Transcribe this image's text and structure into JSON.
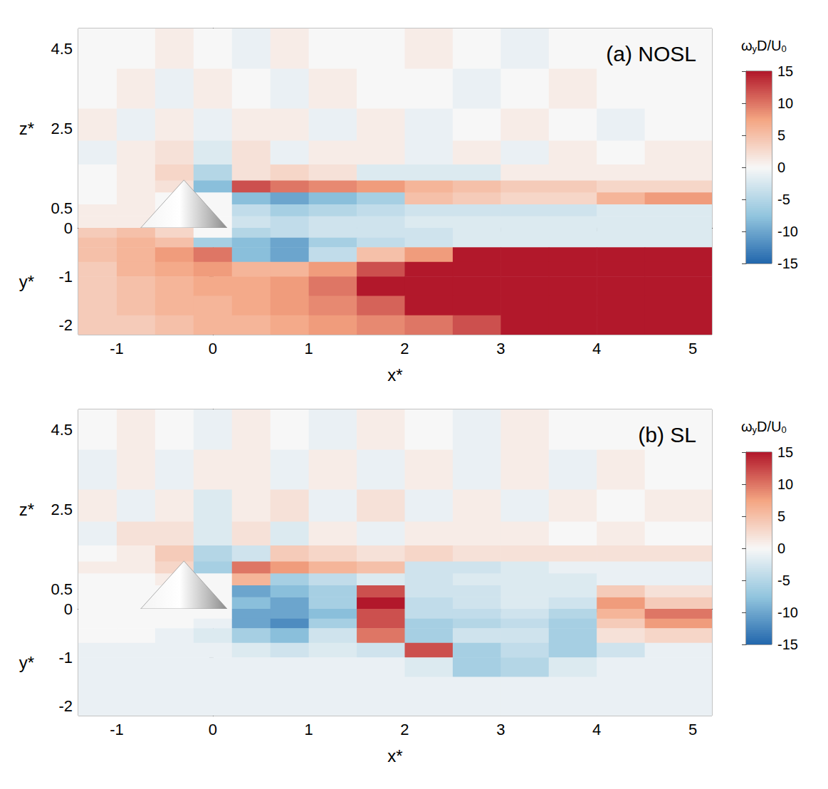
{
  "chart_data": [
    {
      "type": "heatmap",
      "title": "(a) NOSL",
      "xlabel": "x*",
      "ylabel": "y*",
      "zlabel": "z*",
      "xlim": [
        -1.4,
        5.2
      ],
      "xticks": [
        -1,
        0,
        1,
        2,
        3,
        4,
        5
      ],
      "zlim": [
        0,
        5
      ],
      "zticks": [
        0.5,
        2.5,
        4.5
      ],
      "ylim": [
        -2.2,
        0
      ],
      "yticks": [
        0,
        -1,
        -2
      ],
      "x_edges": [
        -1.4,
        -1,
        -0.6,
        -0.2,
        0.2,
        0.6,
        1,
        1.5,
        2,
        2.5,
        3,
        3.5,
        4,
        4.5,
        5.2
      ],
      "z_edges": [
        0,
        0.3,
        0.6,
        0.9,
        1.2,
        1.6,
        2.2,
        3,
        4,
        5
      ],
      "y_edges": [
        0,
        -0.2,
        -0.4,
        -0.7,
        -1,
        -1.4,
        -1.8,
        -2.2
      ],
      "xz_plane": [
        [
          1,
          1,
          0,
          0,
          -3,
          -4,
          -3,
          -3,
          -2,
          -2,
          -2,
          -2,
          -2,
          -2
        ],
        [
          1,
          1,
          0,
          0,
          -4,
          -6,
          -5,
          -4,
          -3,
          -3,
          -3,
          -3,
          -2,
          -2
        ],
        [
          0,
          1,
          0,
          0,
          -8,
          -10,
          -8,
          -6,
          5,
          4,
          3,
          3,
          6,
          8
        ],
        [
          0,
          1,
          2,
          -8,
          12,
          10,
          9,
          8,
          6,
          5,
          4,
          4,
          3,
          3
        ],
        [
          0,
          1,
          3,
          -5,
          2,
          3,
          2,
          -2,
          -2,
          -2,
          1,
          1,
          1,
          1
        ],
        [
          -1,
          1,
          2,
          -2,
          2,
          -1,
          1,
          1,
          -1,
          1,
          -1,
          1,
          0,
          1
        ],
        [
          1,
          -1,
          1,
          -1,
          1,
          1,
          -1,
          1,
          -1,
          0,
          1,
          0,
          -1,
          0
        ],
        [
          0,
          1,
          -1,
          1,
          0,
          -1,
          1,
          0,
          0,
          -1,
          0,
          1,
          0,
          0
        ],
        [
          0,
          0,
          1,
          0,
          -1,
          1,
          0,
          0,
          1,
          0,
          -1,
          0,
          0,
          0
        ]
      ],
      "xy_plane": [
        [
          4,
          5,
          3,
          0,
          -5,
          -4,
          -3,
          -3,
          -3,
          -2,
          -2,
          -2,
          -2,
          -2
        ],
        [
          5,
          6,
          5,
          -6,
          -8,
          -10,
          -6,
          -4,
          -3,
          -2,
          -2,
          -2,
          -2,
          -2
        ],
        [
          5,
          6,
          8,
          10,
          -8,
          -10,
          -4,
          5,
          8,
          15,
          15,
          15,
          15,
          15
        ],
        [
          4,
          6,
          7,
          8,
          6,
          6,
          8,
          12,
          15,
          15,
          15,
          15,
          15,
          15
        ],
        [
          4,
          5,
          6,
          7,
          7,
          8,
          10,
          15,
          15,
          15,
          15,
          15,
          15,
          15
        ],
        [
          4,
          5,
          6,
          6,
          7,
          8,
          9,
          11,
          15,
          15,
          15,
          15,
          15,
          15
        ],
        [
          4,
          4,
          5,
          6,
          6,
          7,
          8,
          9,
          10,
          12,
          15,
          15,
          15,
          15
        ]
      ],
      "cone": {
        "x_center": -0.3,
        "base_diameter": 0.9,
        "height": 1.2
      },
      "colorbar": {
        "label": [
          {
            "text": "ω",
            "sub": false
          },
          {
            "text": "y",
            "sub": true
          },
          {
            "text": "D/U",
            "sub": false
          },
          {
            "text": "0",
            "sub": true
          }
        ],
        "lim": [
          -15,
          15
        ],
        "ticks": [
          -15,
          -10,
          -5,
          0,
          5,
          10,
          15
        ]
      }
    },
    {
      "type": "heatmap",
      "title": "(b) SL",
      "xlabel": "x*",
      "ylabel": "y*",
      "zlabel": "z*",
      "xlim": [
        -1.4,
        5.2
      ],
      "xticks": [
        -1,
        0,
        1,
        2,
        3,
        4,
        5
      ],
      "zlim": [
        0,
        5
      ],
      "zticks": [
        0.5,
        2.5,
        4.5
      ],
      "ylim": [
        -2.2,
        0
      ],
      "yticks": [
        0,
        -1,
        -2
      ],
      "x_edges": [
        -1.4,
        -1,
        -0.6,
        -0.2,
        0.2,
        0.6,
        1,
        1.5,
        2,
        2.5,
        3,
        3.5,
        4,
        4.5,
        5.2
      ],
      "z_edges": [
        0,
        0.3,
        0.6,
        0.9,
        1.2,
        1.6,
        2.2,
        3,
        4,
        5
      ],
      "y_edges": [
        0,
        -0.2,
        -0.4,
        -0.7,
        -1,
        -1.4,
        -1.8,
        -2.2
      ],
      "xz_plane": [
        [
          0,
          0,
          0,
          0,
          -8,
          -10,
          -6,
          15,
          -4,
          -3,
          -2,
          -3,
          8,
          4
        ],
        [
          0,
          0,
          0,
          0,
          -10,
          -8,
          -6,
          12,
          -3,
          -3,
          -2,
          -2,
          4,
          2
        ],
        [
          0,
          0,
          1,
          0,
          6,
          -6,
          -4,
          -2,
          -3,
          -2,
          -2,
          -2,
          -1,
          -1
        ],
        [
          1,
          1,
          3,
          -6,
          10,
          8,
          6,
          5,
          -3,
          -3,
          -2,
          -1,
          -1,
          -1
        ],
        [
          0,
          1,
          4,
          -5,
          -3,
          4,
          3,
          2,
          3,
          2,
          2,
          2,
          2,
          2
        ],
        [
          -1,
          2,
          2,
          -2,
          2,
          -2,
          1,
          -1,
          1,
          1,
          1,
          0,
          1,
          0
        ],
        [
          1,
          -1,
          1,
          -2,
          1,
          2,
          -1,
          2,
          -1,
          1,
          -1,
          1,
          0,
          1
        ],
        [
          -1,
          1,
          -1,
          1,
          1,
          -1,
          1,
          -1,
          1,
          -1,
          1,
          -1,
          1,
          0
        ],
        [
          0,
          1,
          0,
          -1,
          1,
          0,
          -1,
          1,
          0,
          -1,
          1,
          0,
          0,
          0
        ]
      ],
      "xy_plane": [
        [
          0,
          0,
          0,
          0,
          -10,
          -10,
          -8,
          12,
          -4,
          -4,
          -3,
          -5,
          6,
          10
        ],
        [
          0,
          0,
          0,
          -1,
          -10,
          -12,
          -6,
          12,
          -6,
          -5,
          -4,
          -6,
          4,
          8
        ],
        [
          0,
          0,
          -1,
          -2,
          -6,
          -8,
          -3,
          10,
          -6,
          -3,
          -3,
          -6,
          2,
          3
        ],
        [
          -1,
          -1,
          -1,
          -1,
          -2,
          -3,
          -2,
          -3,
          12,
          -6,
          -4,
          -6,
          -3,
          -1
        ],
        [
          -1,
          -1,
          -1,
          -1,
          -1,
          -1,
          -1,
          -1,
          -2,
          -6,
          -5,
          -2,
          -1,
          -1
        ],
        [
          -1,
          -1,
          -1,
          -1,
          -1,
          -1,
          -1,
          -1,
          -1,
          -1,
          -1,
          -1,
          -1,
          -1
        ],
        [
          -1,
          -1,
          -1,
          -1,
          -1,
          -1,
          -1,
          -1,
          -1,
          -1,
          -1,
          -1,
          -1,
          -1
        ]
      ],
      "cone": {
        "x_center": -0.3,
        "base_diameter": 0.9,
        "height": 1.2
      },
      "colorbar": {
        "label": [
          {
            "text": "ω",
            "sub": false
          },
          {
            "text": "y",
            "sub": true
          },
          {
            "text": "D/U",
            "sub": false
          },
          {
            "text": "0",
            "sub": true
          }
        ],
        "lim": [
          -15,
          15
        ],
        "ticks": [
          -15,
          -10,
          -5,
          0,
          5,
          10,
          15
        ]
      }
    }
  ]
}
